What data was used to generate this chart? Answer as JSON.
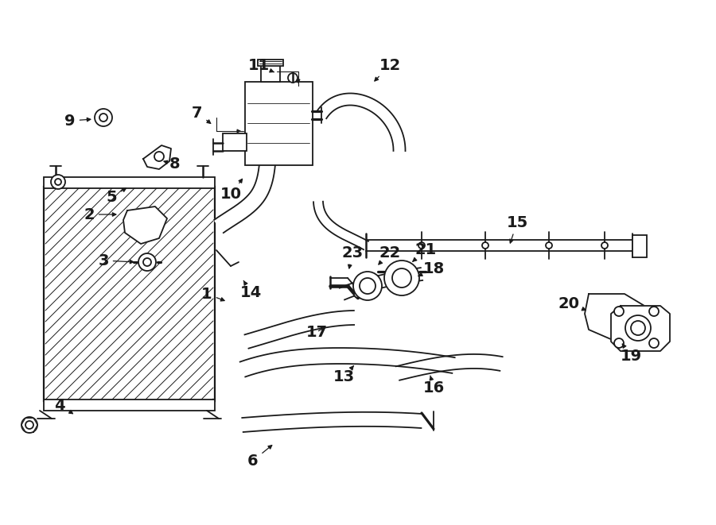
{
  "bg_color": "#ffffff",
  "line_color": "#1a1a1a",
  "lw": 1.3,
  "lw_thin": 0.8,
  "fig_w": 9.0,
  "fig_h": 6.61,
  "dpi": 100
}
